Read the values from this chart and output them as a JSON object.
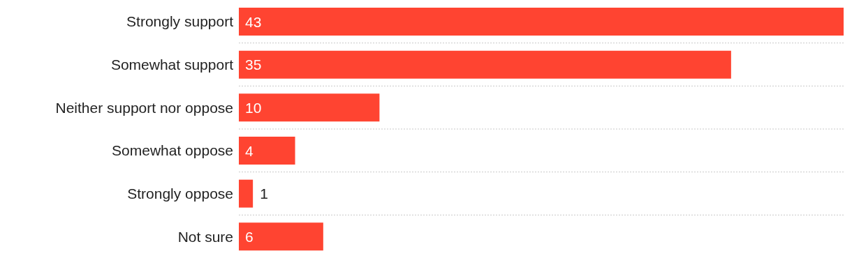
{
  "chart_data": {
    "type": "bar",
    "orientation": "horizontal",
    "categories": [
      "Strongly support",
      "Somewhat support",
      "Neither support nor oppose",
      "Somewhat oppose",
      "Strongly oppose",
      "Not sure"
    ],
    "values": [
      43,
      35,
      10,
      4,
      1,
      6
    ],
    "color": "#ff4431",
    "data_labels": true,
    "grid": "y"
  }
}
